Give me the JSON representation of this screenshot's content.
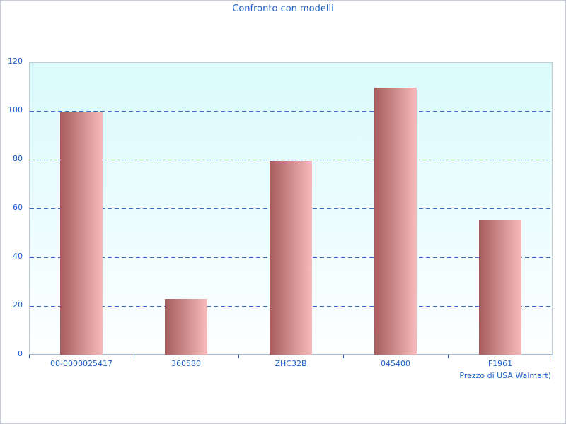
{
  "title": "Confronto con modelli",
  "chart_data": {
    "type": "bar",
    "categories": [
      "00-0000025417",
      "360580",
      "ZHC32B",
      "045400",
      "F1961"
    ],
    "values": [
      99.5,
      23,
      79.5,
      109.5,
      55
    ],
    "title": "Confronto con modelli",
    "xlabel": "Prezzo di USA Walmart)",
    "ylabel": "",
    "ylim": [
      0,
      120
    ],
    "ytick_step": 20,
    "grid": "dashed-horizontal",
    "legend": "none"
  },
  "colors": {
    "text_blue": "#1b5fc8",
    "gridline": "#3a6bc8",
    "bar_dark": "#a65c5c",
    "bar_light": "#f7baba",
    "plot_bg_top": "#dafafc",
    "plot_bg_bottom": "#fdffff",
    "plot_border": "#c2cdd6",
    "axis_line": "#9fb8d0",
    "tick": "#2f6bd0",
    "outer_border": "#c6cdd9"
  }
}
